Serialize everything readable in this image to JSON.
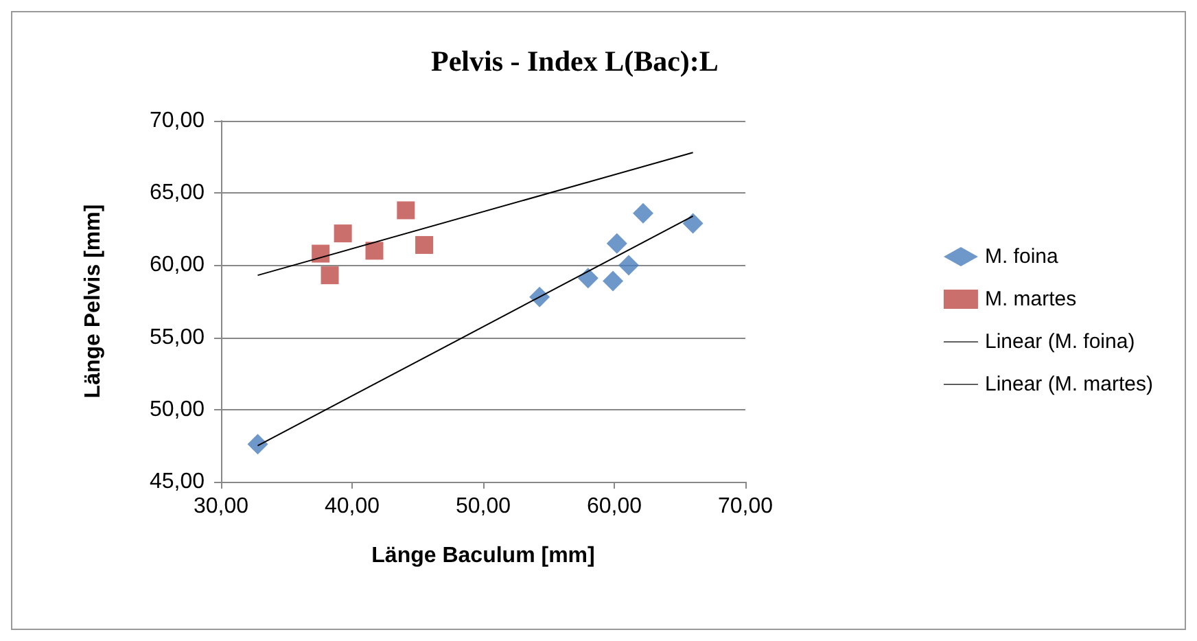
{
  "chart_data": {
    "type": "scatter",
    "title": "Pelvis - Index L(Bac):L",
    "xlabel": "Länge Baculum [mm]",
    "ylabel": "Länge Pelvis [mm]",
    "xlim": [
      30,
      70
    ],
    "ylim": [
      45,
      70
    ],
    "xticks": [
      {
        "value": 30,
        "label": "30,00"
      },
      {
        "value": 40,
        "label": "40,00"
      },
      {
        "value": 50,
        "label": "50,00"
      },
      {
        "value": 60,
        "label": "60,00"
      },
      {
        "value": 70,
        "label": "70,00"
      }
    ],
    "yticks": [
      {
        "value": 45,
        "label": "45,00"
      },
      {
        "value": 50,
        "label": "50,00"
      },
      {
        "value": 55,
        "label": "55,00"
      },
      {
        "value": 60,
        "label": "60,00"
      },
      {
        "value": 65,
        "label": "65,00"
      },
      {
        "value": 70,
        "label": "70,00"
      }
    ],
    "grid": "y",
    "legend": "right",
    "series": [
      {
        "name": "M. foina",
        "color": "#4a7ebb",
        "marker": "diamond",
        "x": [
          32.8,
          54.3,
          58.0,
          59.9,
          60.2,
          61.1,
          62.2,
          66.0
        ],
        "values": [
          47.6,
          57.8,
          59.1,
          58.9,
          61.5,
          60.0,
          63.6,
          62.9
        ]
      },
      {
        "name": "M. martes",
        "color": "#be4b48",
        "marker": "square",
        "x": [
          37.6,
          38.3,
          39.3,
          41.7,
          44.1,
          45.5
        ],
        "values": [
          60.8,
          59.3,
          62.2,
          61.0,
          63.8,
          61.4
        ]
      },
      {
        "name": "Linear (M. foina)",
        "type": "line",
        "color": "#000000",
        "marker": "none",
        "x": [
          32.8,
          66.0
        ],
        "values": [
          47.5,
          63.4
        ]
      },
      {
        "name": "Linear (M. martes)",
        "type": "line",
        "color": "#000000",
        "marker": "none",
        "x": [
          32.8,
          66.0
        ],
        "values": [
          59.3,
          67.8
        ]
      }
    ]
  }
}
